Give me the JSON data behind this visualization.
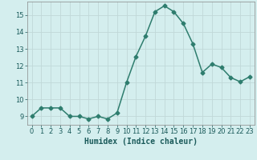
{
  "x": [
    0,
    1,
    2,
    3,
    4,
    5,
    6,
    7,
    8,
    9,
    10,
    11,
    12,
    13,
    14,
    15,
    16,
    17,
    18,
    19,
    20,
    21,
    22,
    23
  ],
  "y": [
    9.0,
    9.5,
    9.5,
    9.5,
    9.0,
    9.0,
    8.85,
    9.0,
    8.85,
    9.2,
    11.0,
    12.55,
    13.75,
    15.2,
    15.55,
    15.2,
    14.5,
    13.3,
    11.6,
    12.1,
    11.9,
    11.3,
    11.05,
    11.35
  ],
  "line_color": "#2e7d6e",
  "marker": "D",
  "marker_size": 2.5,
  "linewidth": 1.1,
  "xlabel": "Humidex (Indice chaleur)",
  "xlim": [
    -0.5,
    23.5
  ],
  "ylim": [
    8.5,
    15.8
  ],
  "yticks": [
    9,
    10,
    11,
    12,
    13,
    14,
    15
  ],
  "xticks": [
    0,
    1,
    2,
    3,
    4,
    5,
    6,
    7,
    8,
    9,
    10,
    11,
    12,
    13,
    14,
    15,
    16,
    17,
    18,
    19,
    20,
    21,
    22,
    23
  ],
  "background_color": "#d4eeee",
  "grid_color": "#c0d8d8",
  "tick_fontsize": 6.0,
  "xlabel_fontsize": 7.0
}
